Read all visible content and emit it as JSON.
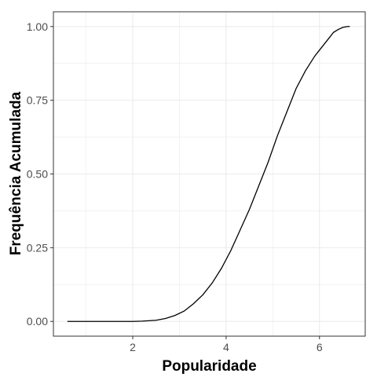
{
  "chart_data": {
    "type": "line",
    "title": "",
    "xlabel": "Popularidade",
    "ylabel": "Frequência Acumulada",
    "xlim": [
      0.3,
      6.98
    ],
    "ylim": [
      -0.05,
      1.05
    ],
    "x_ticks": [
      2,
      4,
      6
    ],
    "x_tick_labels": [
      "2",
      "4",
      "6"
    ],
    "y_ticks": [
      0,
      0.25,
      0.5,
      0.75,
      1
    ],
    "y_tick_labels": [
      "0.00",
      "0.25",
      "0.50",
      "0.75",
      "1.00"
    ],
    "grid": true,
    "legend": "none",
    "colors": {
      "line": "#000000",
      "grid": "#ebebeb",
      "panel_border": "#333333",
      "background": "#ffffff"
    },
    "series": [
      {
        "x": [
          0.6,
          1.0,
          1.5,
          2.0,
          2.2,
          2.5,
          2.7,
          2.9,
          3.1,
          3.3,
          3.5,
          3.7,
          3.9,
          4.1,
          4.3,
          4.5,
          4.7,
          4.9,
          5.1,
          5.3,
          5.5,
          5.7,
          5.8,
          5.9,
          6.0,
          6.1,
          6.2,
          6.3,
          6.4,
          6.5,
          6.6,
          6.65
        ],
        "y": [
          0,
          0,
          0,
          0,
          0.001,
          0.004,
          0.01,
          0.02,
          0.035,
          0.06,
          0.09,
          0.13,
          0.18,
          0.24,
          0.31,
          0.38,
          0.46,
          0.54,
          0.63,
          0.71,
          0.79,
          0.85,
          0.875,
          0.9,
          0.92,
          0.94,
          0.96,
          0.98,
          0.99,
          0.997,
          1.0,
          1.0
        ]
      }
    ]
  }
}
